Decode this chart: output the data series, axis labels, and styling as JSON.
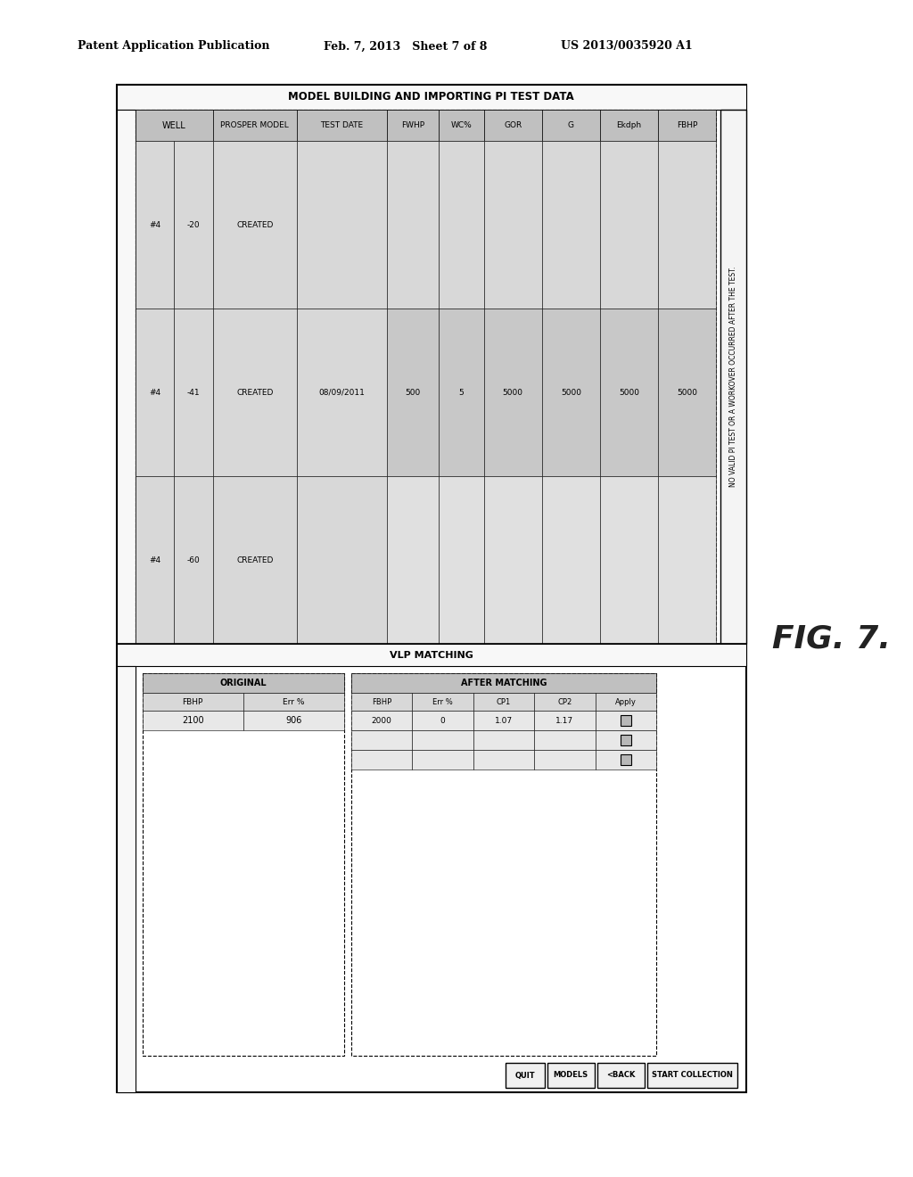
{
  "header_left": "Patent Application Publication",
  "header_mid": "Feb. 7, 2013   Sheet 7 of 8",
  "header_right": "US 2013/0035920 A1",
  "fig_label": "FIG. 7.",
  "top_panel_title": "MODEL BUILDING AND IMPORTING PI TEST DATA",
  "table_col_headers": [
    "WELL",
    "PROSPER MODEL",
    "TEST DATE",
    "FWHP",
    "WC%",
    "GOR",
    "G",
    "Ekdph",
    "FBHP"
  ],
  "table_rows": [
    [
      "-20",
      "CREATED",
      "",
      "",
      "",
      "",
      "",
      "",
      ""
    ],
    [
      "-41",
      "CREATED",
      "08/09/2011",
      "500",
      "5",
      "5000",
      "5000",
      "5000",
      "5000"
    ],
    [
      "-60",
      "CREATED",
      "",
      "",
      "",
      "",
      "",
      "",
      ""
    ]
  ],
  "well_ids": [
    "#4",
    "#4",
    "#4"
  ],
  "note_text": "NO VALID PI TEST OR A WORKOVER OCCURRED AFTER THE TEST.",
  "vlp_label": "VLP MATCHING",
  "after_label": "AFTER MATCHING",
  "orig_label": "ORIGINAL",
  "orig_col_headers": [
    "FBHP",
    "Err %"
  ],
  "orig_data": [
    "2100",
    "906"
  ],
  "after_col_headers": [
    "FBHP",
    "Err %",
    "CP1",
    "CP2",
    "Apply"
  ],
  "after_data": [
    "2000",
    "0",
    "1.07",
    "1.17",
    ""
  ],
  "buttons": [
    "QUIT",
    "MODELS",
    "<BACK",
    "START COLLECTION"
  ],
  "bg_color": "#ffffff",
  "cell_gray1": "#d8d8d8",
  "cell_gray2": "#c8c8c8",
  "cell_gray3": "#e0e0e0",
  "header_gray": "#c0c0c0",
  "note_bg": "#f4f4f4",
  "button_bg": "#f0f0f0"
}
